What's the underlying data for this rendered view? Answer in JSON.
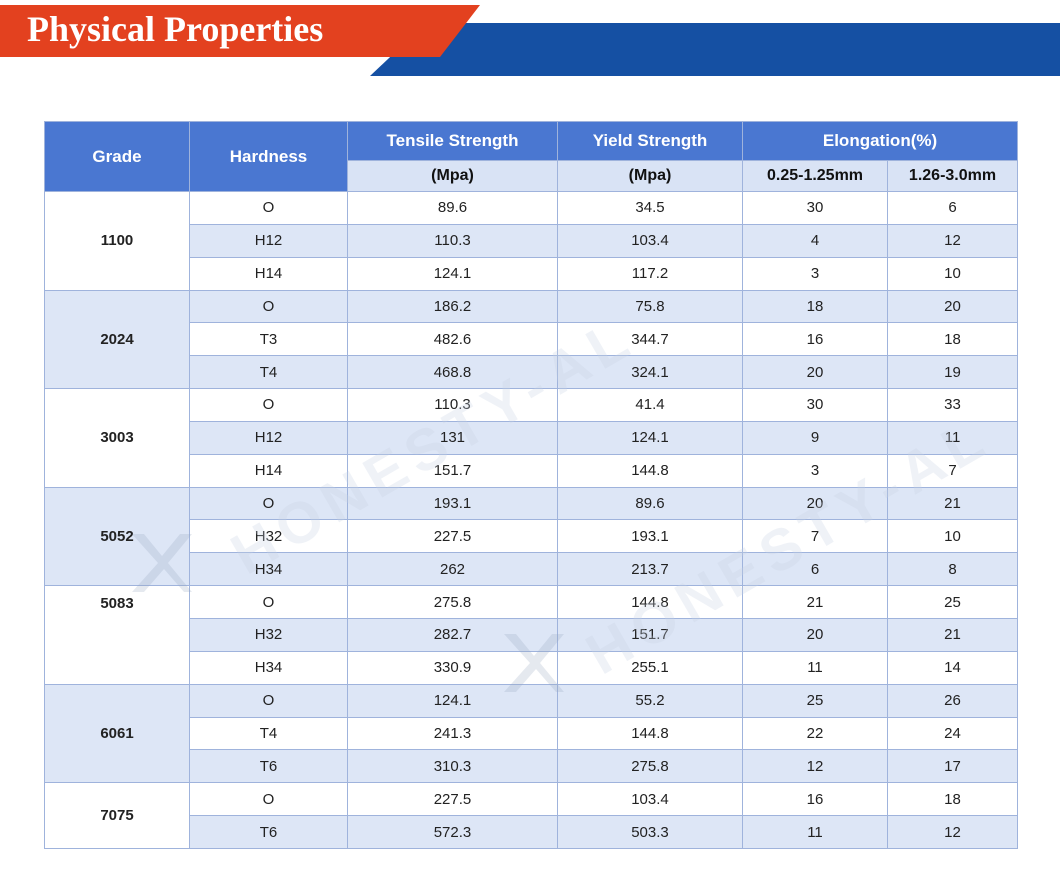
{
  "banner": {
    "title": "Physical Properties",
    "colors": {
      "red": "#e3411f",
      "blue": "#1550a3"
    }
  },
  "watermark": {
    "text": "HONESTY-AL",
    "logo": "honesty-x-logo-watermark"
  },
  "table": {
    "header": {
      "grade": "Grade",
      "hardness": "Hardness",
      "tensile": "Tensile Strength",
      "tensile_unit": "(Mpa)",
      "yield": "Yield Strength",
      "yield_unit": "(Mpa)",
      "elongation": "Elongation(%)",
      "elong_a": "0.25-1.25mm",
      "elong_b": "1.26-3.0mm"
    },
    "groups": [
      {
        "grade": "1100",
        "rows": [
          {
            "hardness": "O",
            "tensile": "89.6",
            "yield": "34.5",
            "elong_a": "30",
            "elong_b": "6"
          },
          {
            "hardness": "H12",
            "tensile": "110.3",
            "yield": "103.4",
            "elong_a": "4",
            "elong_b": "12"
          },
          {
            "hardness": "H14",
            "tensile": "124.1",
            "yield": "117.2",
            "elong_a": "3",
            "elong_b": "10"
          }
        ]
      },
      {
        "grade": "2024",
        "rows": [
          {
            "hardness": "O",
            "tensile": "186.2",
            "yield": "75.8",
            "elong_a": "18",
            "elong_b": "20"
          },
          {
            "hardness": "T3",
            "tensile": "482.6",
            "yield": "344.7",
            "elong_a": "16",
            "elong_b": "18"
          },
          {
            "hardness": "T4",
            "tensile": "468.8",
            "yield": "324.1",
            "elong_a": "20",
            "elong_b": "19"
          }
        ]
      },
      {
        "grade": "3003",
        "rows": [
          {
            "hardness": "O",
            "tensile": "110.3",
            "yield": "41.4",
            "elong_a": "30",
            "elong_b": "33"
          },
          {
            "hardness": "H12",
            "tensile": "131",
            "yield": "124.1",
            "elong_a": "9",
            "elong_b": "11"
          },
          {
            "hardness": "H14",
            "tensile": "151.7",
            "yield": "144.8",
            "elong_a": "3",
            "elong_b": "7"
          }
        ]
      },
      {
        "grade": "5052",
        "rows": [
          {
            "hardness": "O",
            "tensile": "193.1",
            "yield": "89.6",
            "elong_a": "20",
            "elong_b": "21"
          },
          {
            "hardness": "H32",
            "tensile": "227.5",
            "yield": "193.1",
            "elong_a": "7",
            "elong_b": "10"
          },
          {
            "hardness": "H34",
            "tensile": "262",
            "yield": "213.7",
            "elong_a": "6",
            "elong_b": "8"
          }
        ]
      },
      {
        "grade": "5083",
        "rows": [
          {
            "hardness": "O",
            "tensile": "275.8",
            "yield": "144.8",
            "elong_a": "21",
            "elong_b": "25"
          },
          {
            "hardness": "H32",
            "tensile": "282.7",
            "yield": "151.7",
            "elong_a": "20",
            "elong_b": "21"
          },
          {
            "hardness": "H34",
            "tensile": "330.9",
            "yield": "255.1",
            "elong_a": "11",
            "elong_b": "14"
          }
        ]
      },
      {
        "grade": "6061",
        "rows": [
          {
            "hardness": "O",
            "tensile": "124.1",
            "yield": "55.2",
            "elong_a": "25",
            "elong_b": "26"
          },
          {
            "hardness": "T4",
            "tensile": "241.3",
            "yield": "144.8",
            "elong_a": "22",
            "elong_b": "24"
          },
          {
            "hardness": "T6",
            "tensile": "310.3",
            "yield": "275.8",
            "elong_a": "12",
            "elong_b": "17"
          }
        ]
      },
      {
        "grade": "7075",
        "rows": [
          {
            "hardness": "O",
            "tensile": "227.5",
            "yield": "103.4",
            "elong_a": "16",
            "elong_b": "18"
          },
          {
            "hardness": "T6",
            "tensile": "572.3",
            "yield": "503.3",
            "elong_a": "11",
            "elong_b": "12"
          }
        ]
      }
    ]
  }
}
